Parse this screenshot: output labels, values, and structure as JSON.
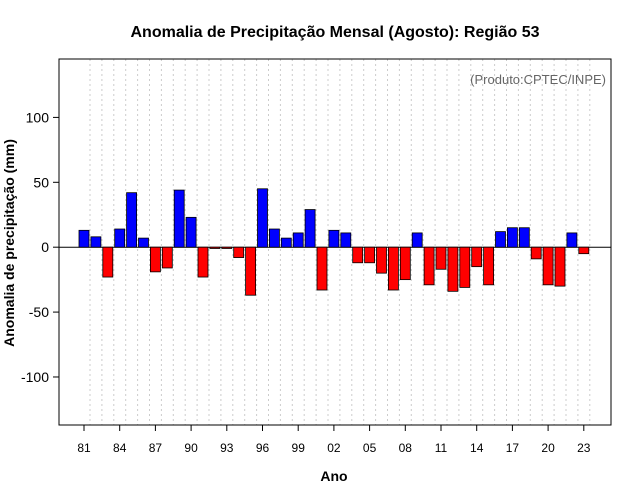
{
  "chart_data": {
    "type": "bar",
    "title": "Anomalia de Precipitação Mensal (Agosto): Região 53",
    "xlabel": "Ano",
    "ylabel": "Anomalia de precipitação (mm)",
    "credit": "(Produto:CPTEC/INPE)",
    "ylim": [
      -137,
      145
    ],
    "yticks": [
      100,
      50,
      0,
      -50,
      -100
    ],
    "ytick_labels": [
      "100",
      "50",
      "0",
      "-50",
      "-100"
    ],
    "xtick_labels": [
      "81",
      "84",
      "87",
      "90",
      "93",
      "96",
      "99",
      "02",
      "05",
      "08",
      "11",
      "14",
      "17",
      "20",
      "23"
    ],
    "xtick_years": [
      1981,
      1984,
      1987,
      1990,
      1993,
      1996,
      1999,
      2002,
      2005,
      2008,
      2011,
      2014,
      2017,
      2020,
      2023
    ],
    "grid": true,
    "colors": {
      "positive": "#0000ff",
      "negative": "#ff0000",
      "grid": "#cccccc",
      "frame": "#000000"
    },
    "categories": [
      1981,
      1982,
      1983,
      1984,
      1985,
      1986,
      1987,
      1988,
      1989,
      1990,
      1991,
      1992,
      1993,
      1994,
      1995,
      1996,
      1997,
      1998,
      1999,
      2000,
      2001,
      2002,
      2003,
      2004,
      2005,
      2006,
      2007,
      2008,
      2009,
      2010,
      2011,
      2012,
      2013,
      2014,
      2015,
      2016,
      2017,
      2018,
      2019,
      2020,
      2021,
      2022,
      2023
    ],
    "values": [
      13,
      8,
      -23,
      14,
      42,
      7,
      -19,
      -16,
      44,
      23,
      -23,
      -1,
      -1,
      -8,
      -37,
      45,
      14,
      7,
      11,
      29,
      -33,
      13,
      11,
      -12,
      -12,
      -20,
      -33,
      -25,
      11,
      -29,
      -17,
      -34,
      -31,
      -15,
      -29,
      12,
      15,
      15,
      -9,
      -29,
      -30,
      11,
      -5
    ]
  }
}
